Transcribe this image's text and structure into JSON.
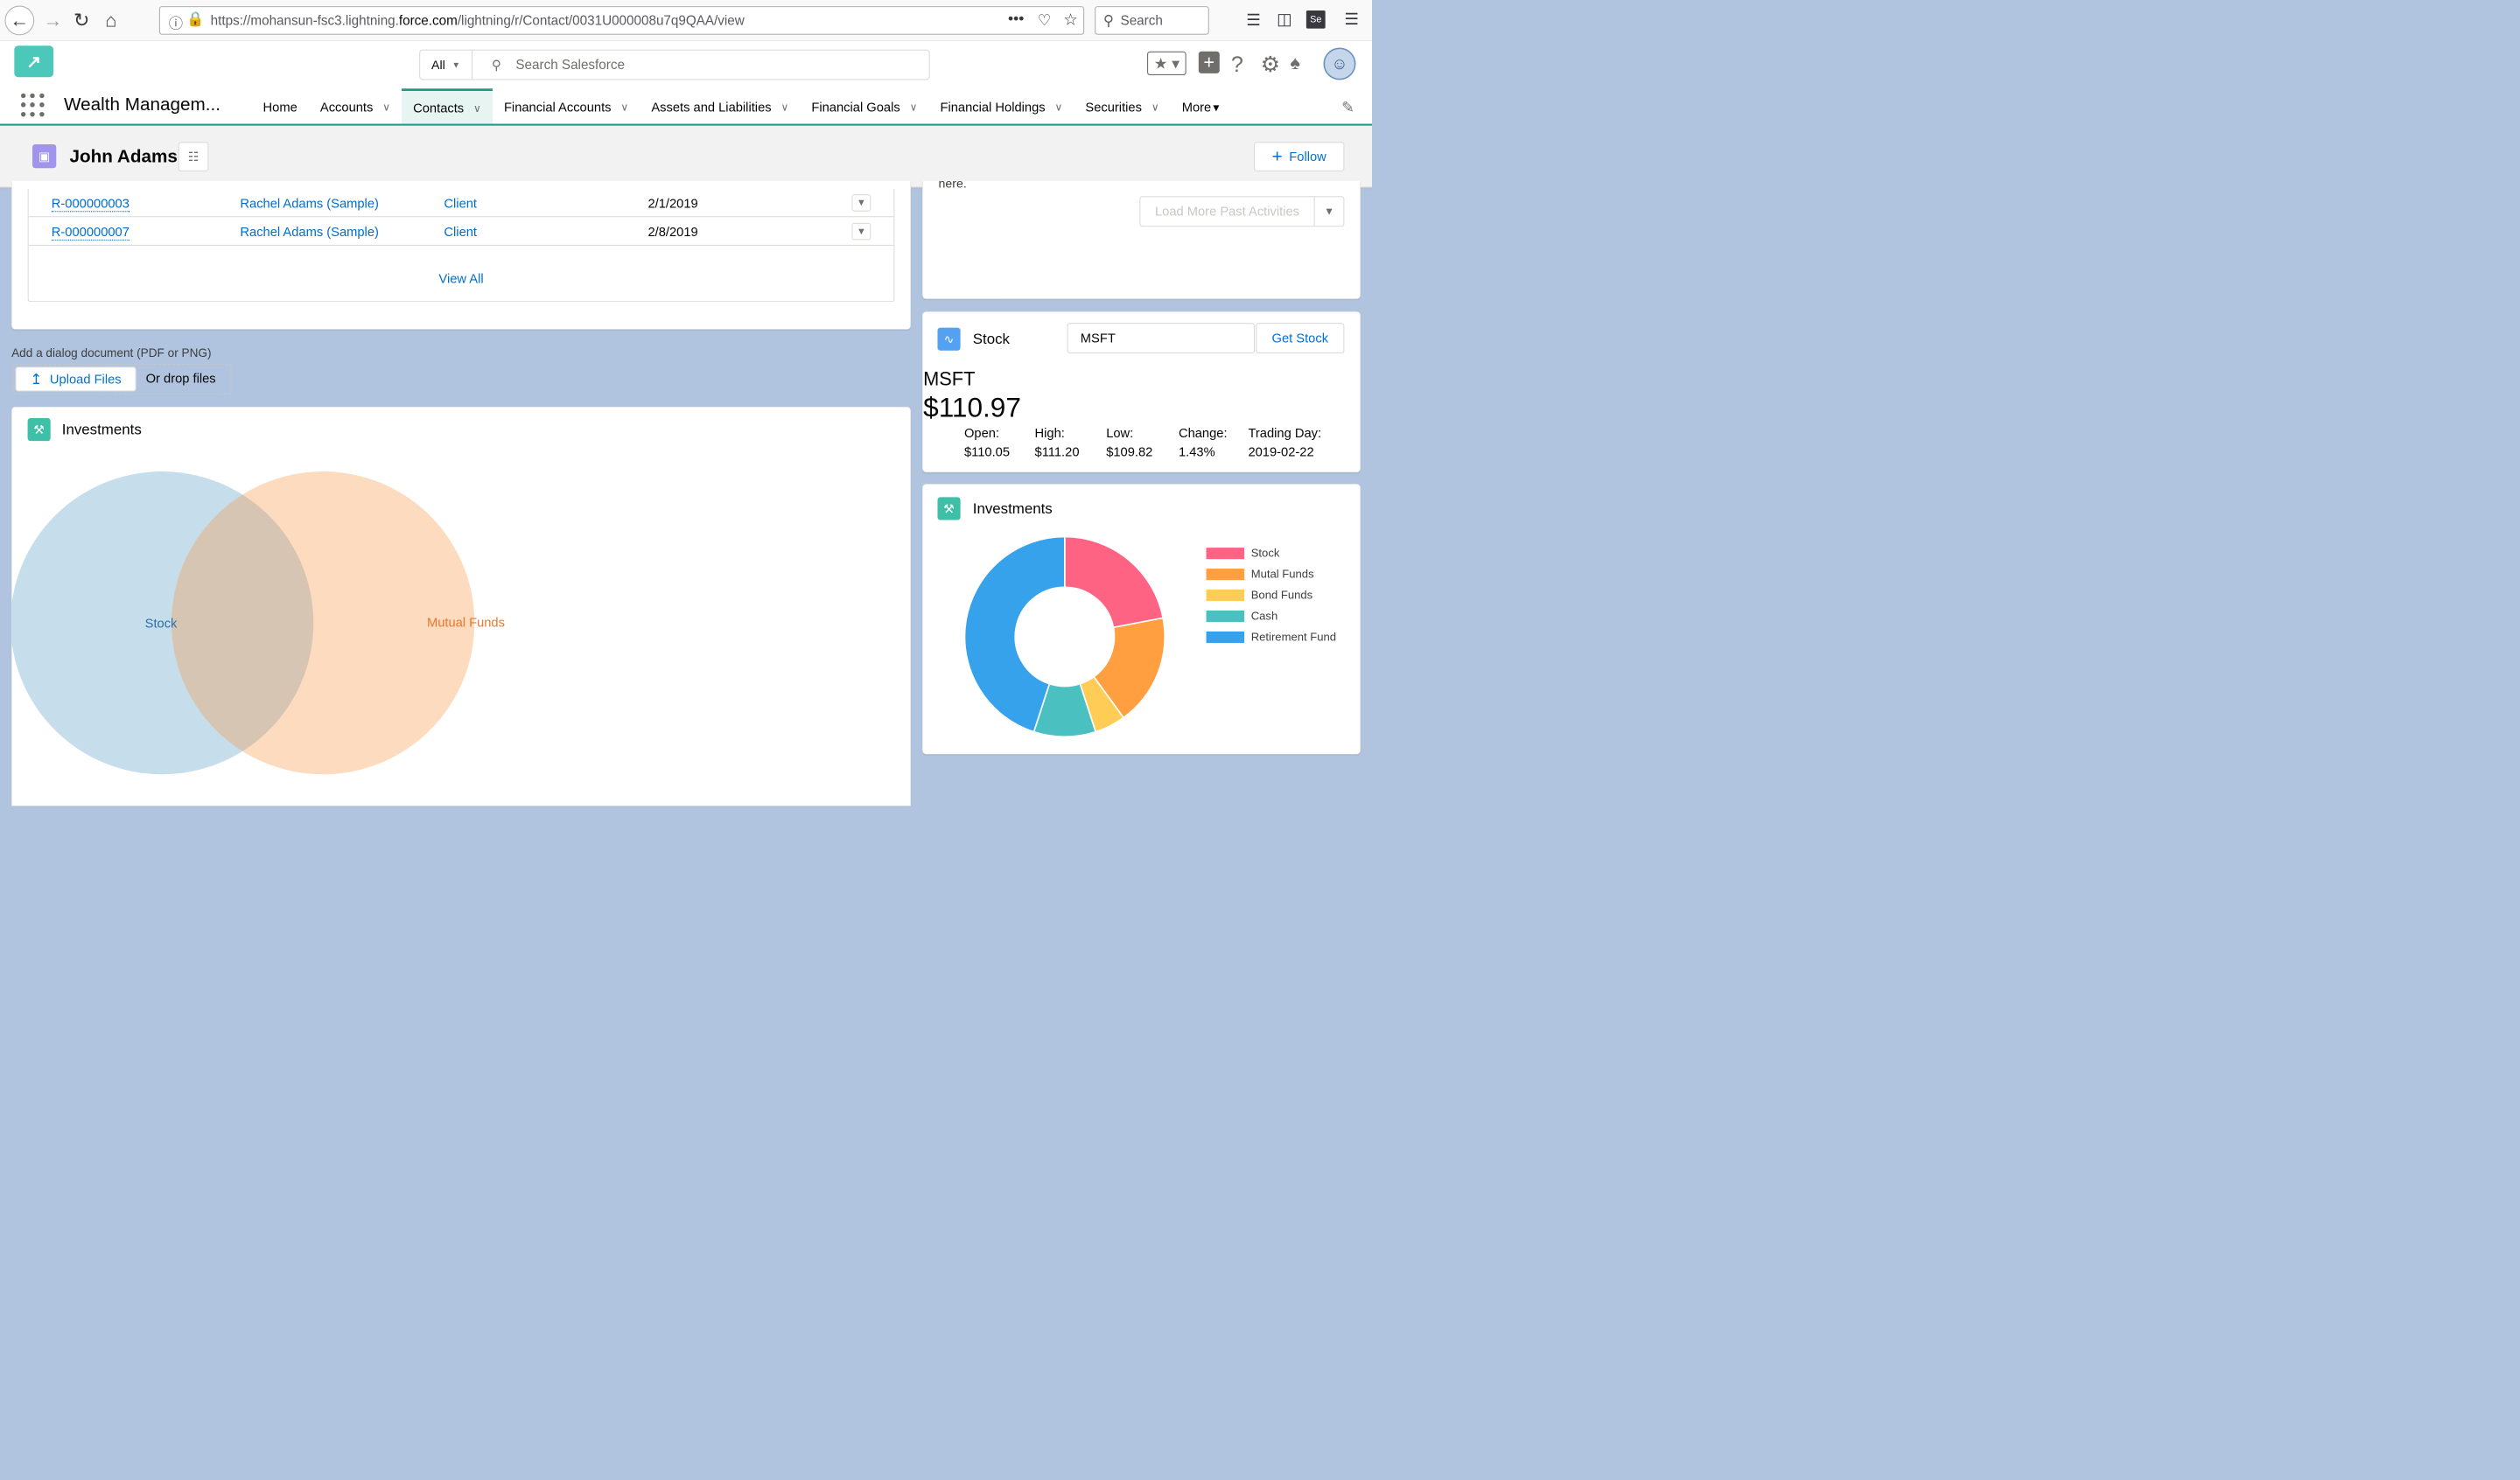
{
  "browser": {
    "url_prefix": "https://mohansun-fsc3.lightning.",
    "url_host": "force.com",
    "url_suffix": "/lightning/r/Contact/0031U000008u7q9QAA/view",
    "search_placeholder": "Search"
  },
  "header": {
    "app_name": "Wealth Managem...",
    "search_scope": "All",
    "search_placeholder": "Search Salesforce",
    "nav": [
      {
        "label": "Home",
        "has_menu": false,
        "active": false
      },
      {
        "label": "Accounts",
        "has_menu": true,
        "active": false
      },
      {
        "label": "Contacts",
        "has_menu": true,
        "active": true
      },
      {
        "label": "Financial Accounts",
        "has_menu": true,
        "active": false
      },
      {
        "label": "Assets and Liabilities",
        "has_menu": true,
        "active": false
      },
      {
        "label": "Financial Goals",
        "has_menu": true,
        "active": false
      },
      {
        "label": "Financial Holdings",
        "has_menu": true,
        "active": false
      },
      {
        "label": "Securities",
        "has_menu": true,
        "active": false
      },
      {
        "label": "More",
        "has_menu": true,
        "active": false
      }
    ]
  },
  "record": {
    "name": "John Adams",
    "follow_label": "Follow"
  },
  "related": {
    "rows": [
      {
        "id": "R-000000003",
        "contact": "Rachel Adams (Sample)",
        "role": "Client",
        "date": "2/1/2019"
      },
      {
        "id": "R-000000007",
        "contact": "Rachel Adams (Sample)",
        "role": "Client",
        "date": "2/8/2019"
      }
    ],
    "view_all": "View All"
  },
  "upload": {
    "label": "Add a dialog document (PDF or PNG)",
    "button": "Upload Files",
    "drop_text": "Or drop files"
  },
  "activity": {
    "partial_text": "here.",
    "load_more": "Load More Past Activities"
  },
  "stock": {
    "title": "Stock",
    "input_value": "MSFT",
    "button": "Get Stock",
    "symbol": "MSFT",
    "price": "$110.97",
    "stats": [
      {
        "label": "Open:",
        "value": "$110.05"
      },
      {
        "label": "High:",
        "value": "$111.20"
      },
      {
        "label": "Low:",
        "value": "$109.82"
      },
      {
        "label": "Change:",
        "value": "1.43%"
      },
      {
        "label": "Trading Day:",
        "value": "2019-02-22"
      }
    ]
  },
  "investments_main": {
    "title": "Investments",
    "sets": [
      {
        "label": "Stock",
        "color": "#c5dcec",
        "label_color": "#2e6fa6"
      },
      {
        "label": "Mutual Funds",
        "color": "#fddbbe",
        "label_color": "#e8772e"
      }
    ]
  },
  "investments_side": {
    "title": "Investments",
    "chart_data": {
      "type": "pie",
      "categories": [
        "Stock",
        "Mutual Funds",
        "Bond Funds",
        "Cash",
        "Retirement Fund"
      ],
      "legend_labels": [
        "Stock",
        "Mutal Funds",
        "Bond Funds",
        "Cash",
        "Retirement Fund"
      ],
      "values": [
        22,
        18,
        5,
        10,
        45
      ],
      "colors": [
        "#ff6384",
        "#ff9f40",
        "#ffcd56",
        "#4bc0c0",
        "#36a2eb"
      ],
      "donut": true,
      "legend": "right"
    }
  }
}
